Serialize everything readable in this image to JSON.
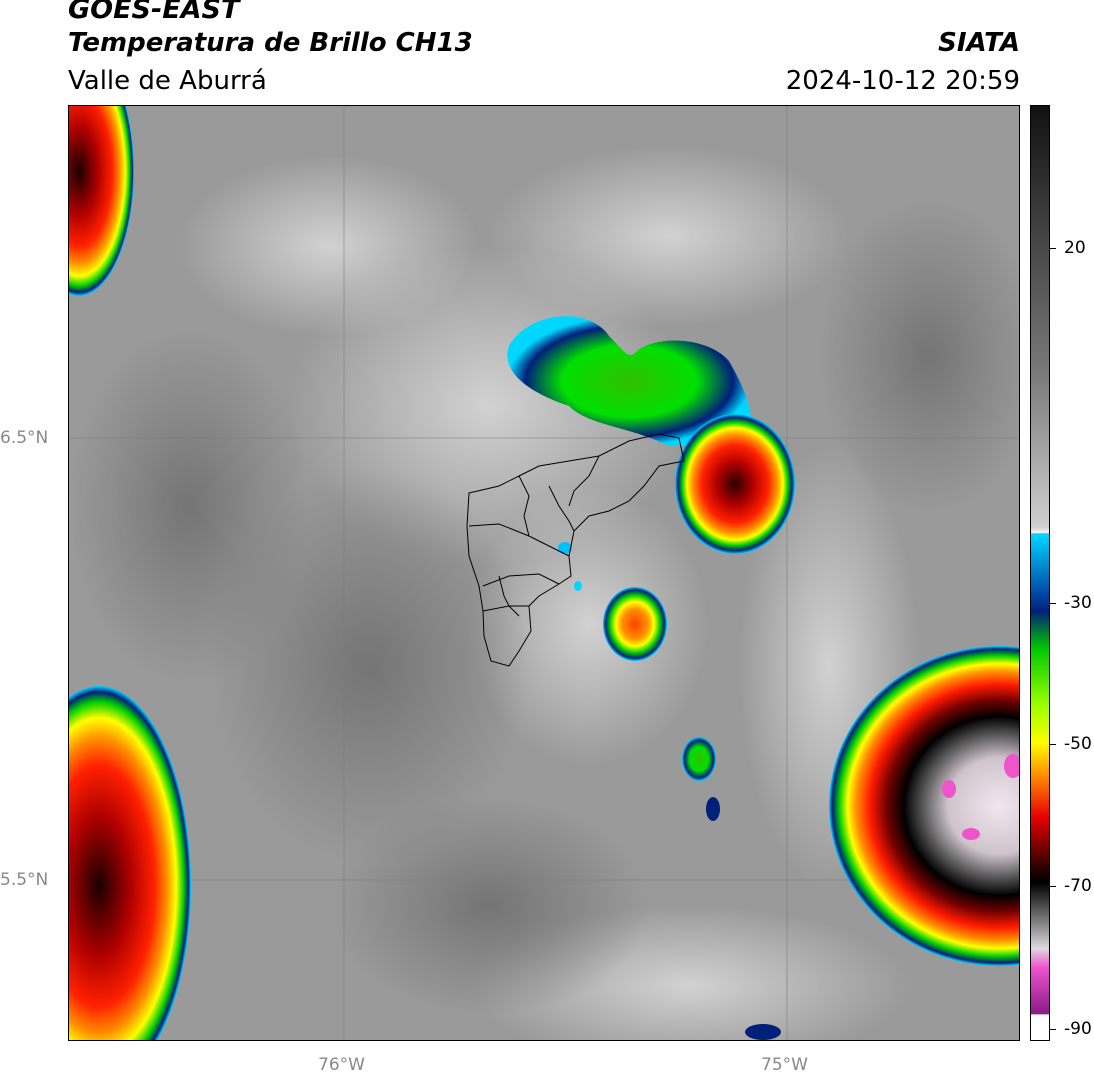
{
  "header": {
    "satellite": "GOES-EAST",
    "product": "Temperatura de Brillo CH13",
    "region": "Valle de Aburrá",
    "organization": "SIATA",
    "timestamp": "2024-10-12 20:59"
  },
  "map": {
    "lat_labels": [
      "6.5°N",
      "5.5°N"
    ],
    "lon_labels": [
      "76°W",
      "75°W"
    ]
  },
  "colorbar": {
    "tick_labels": [
      "20",
      "-30",
      "-50",
      "-70",
      "-90"
    ],
    "colors": {
      "warm_top": "#111111",
      "warm_mid": "#8c8c8c",
      "light": "#f0f0f0",
      "cyan": "#00d7ff",
      "blue": "#004aa8",
      "navy": "#00207a",
      "green": "#00c800",
      "lime": "#9cff00",
      "yellow": "#ffff00",
      "orange": "#ff7d00",
      "red": "#e60000",
      "darkred": "#3a0000",
      "black": "#000000",
      "pale": "#e0d8e0",
      "pink": "#ee55cc",
      "purple": "#8a1a8a",
      "white": "#ffffff"
    }
  }
}
